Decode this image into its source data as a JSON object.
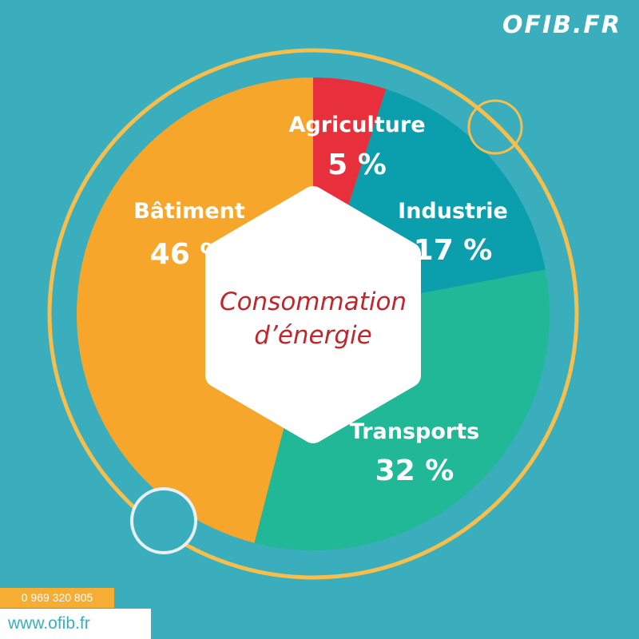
{
  "brand": {
    "logo": "OFIB.FR",
    "phone": "0 969 320 805",
    "website": "www.ofib.fr"
  },
  "colors": {
    "background": "#3aaebc",
    "ring": "#f6be4c",
    "agriculture": "#e8303d",
    "industrie": "#0b9fad",
    "transports": "#21b897",
    "batiment": "#f6a62b",
    "center_text": "#c0272d"
  },
  "chart_data": {
    "type": "pie",
    "title": "Consommation d’énergie",
    "center_label": [
      "Consommation",
      "d’énergie"
    ],
    "slices": [
      {
        "label": "Agriculture",
        "value": 5,
        "value_label": "5 %"
      },
      {
        "label": "Industrie",
        "value": 17,
        "value_label": "17 %"
      },
      {
        "label": "Transports",
        "value": 32,
        "value_label": "32 %"
      },
      {
        "label": "Bâtiment",
        "value": 46,
        "value_label": "46 %"
      }
    ]
  }
}
